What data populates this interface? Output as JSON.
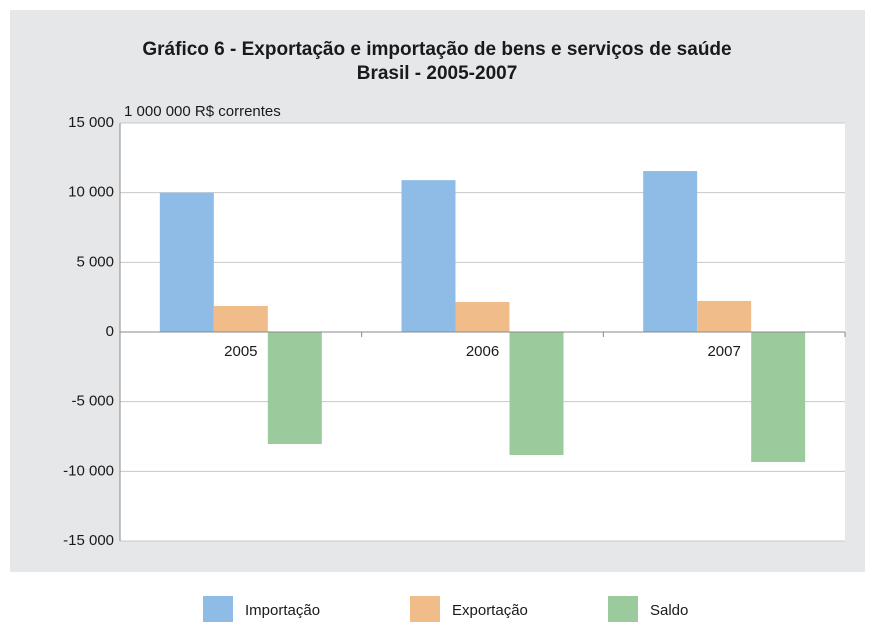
{
  "chart_data": {
    "type": "bar",
    "title": "Gráfico 6 - Exportação e importação de bens e serviços de saúde",
    "subtitle": "Brasil - 2005-2007",
    "y_axis_label": "1 000 000 R$ correntes",
    "categories": [
      "2005",
      "2006",
      "2007"
    ],
    "series": [
      {
        "name": "Importação",
        "color": "#8fbce6",
        "values": [
          10000,
          10900,
          11550
        ]
      },
      {
        "name": "Exportação",
        "color": "#f0bc8a",
        "values": [
          1870,
          2150,
          2230
        ]
      },
      {
        "name": "Saldo",
        "color": "#9bcb9d",
        "values": [
          -8040,
          -8830,
          -9330
        ]
      }
    ],
    "ylim": [
      -15000,
      15000
    ],
    "yticks": [
      {
        "value": -15000,
        "label": "-15 000"
      },
      {
        "value": -10000,
        "label": "-10 000"
      },
      {
        "value": -5000,
        "label": "-5 000"
      },
      0,
      {
        "value": 5000,
        "label": "5 000"
      },
      {
        "value": 10000,
        "label": "10 000"
      },
      {
        "value": 15000,
        "label": "15 000"
      }
    ],
    "grid": true,
    "legend": "bottom"
  }
}
